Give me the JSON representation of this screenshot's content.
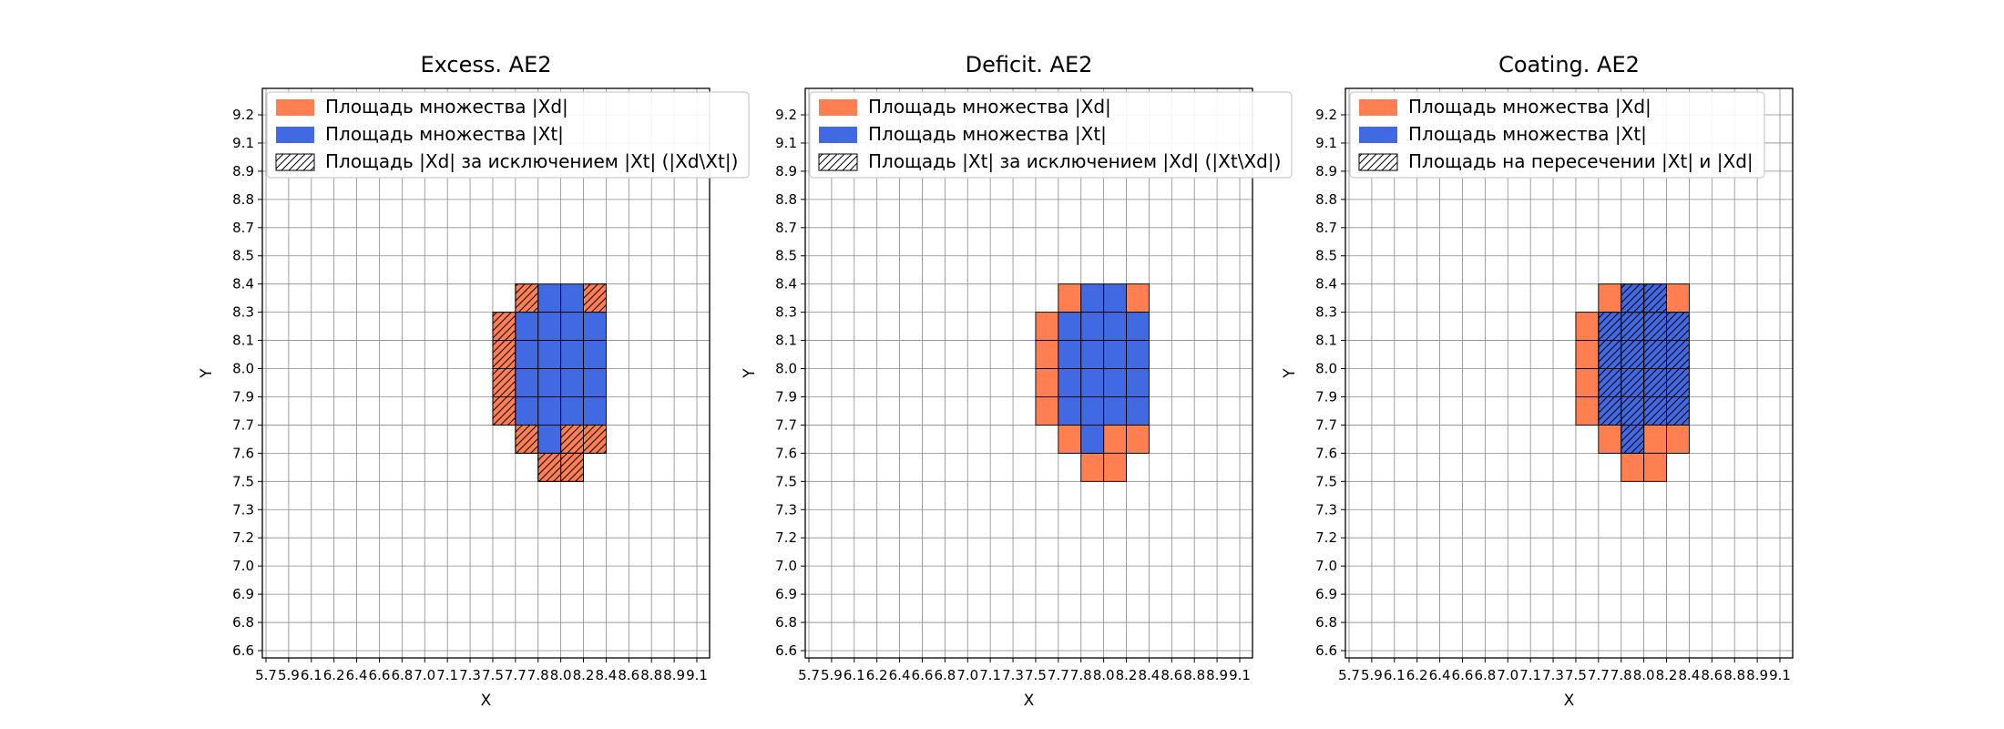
{
  "figure": {
    "background": "#ffffff",
    "text_color": "#000000"
  },
  "chart_data": {
    "type": "heatmap",
    "grid": true,
    "xlabel": "X",
    "ylabel": "Y",
    "x_ticks": [
      "5.7",
      "5.9",
      "6.1",
      "6.2",
      "6.4",
      "6.6",
      "6.8",
      "7.0",
      "7.1",
      "7.3",
      "7.5",
      "7.7",
      "7.8",
      "8.0",
      "8.2",
      "8.4",
      "8.6",
      "8.8",
      "8.9",
      "9.1"
    ],
    "y_ticks": [
      "9.2",
      "9.1",
      "8.9",
      "8.8",
      "8.7",
      "8.5",
      "8.4",
      "8.3",
      "8.1",
      "8.0",
      "7.9",
      "7.7",
      "7.6",
      "7.5",
      "7.3",
      "7.2",
      "7.0",
      "6.9",
      "6.8",
      "6.6"
    ],
    "colors": {
      "xd": "#ff7f50",
      "xt": "#4169e1",
      "grid": "#8a8a8a",
      "hatch": "#000000",
      "spine": "#000000",
      "legend_border": "#cccccc",
      "legend_bg": "#ffffff"
    },
    "cells": {
      "xd": [
        [
          11,
          6
        ],
        [
          14,
          6
        ],
        [
          10,
          7
        ],
        [
          10,
          8
        ],
        [
          10,
          9
        ],
        [
          10,
          10
        ],
        [
          11,
          11
        ],
        [
          13,
          11
        ],
        [
          14,
          11
        ],
        [
          12,
          12
        ],
        [
          13,
          12
        ]
      ],
      "xt": [
        [
          12,
          6
        ],
        [
          13,
          6
        ],
        [
          11,
          7
        ],
        [
          12,
          7
        ],
        [
          13,
          7
        ],
        [
          14,
          7
        ],
        [
          11,
          8
        ],
        [
          12,
          8
        ],
        [
          13,
          8
        ],
        [
          14,
          8
        ],
        [
          11,
          9
        ],
        [
          12,
          9
        ],
        [
          13,
          9
        ],
        [
          14,
          9
        ],
        [
          11,
          10
        ],
        [
          12,
          10
        ],
        [
          13,
          10
        ],
        [
          14,
          10
        ],
        [
          12,
          11
        ]
      ]
    },
    "subplots": [
      {
        "title": "Excess. AE2",
        "hatch_on": "xd",
        "legend": [
          {
            "swatch": "xd",
            "label": "Площадь множества |Xd|"
          },
          {
            "swatch": "xt",
            "label": "Площадь множества  |Xt|"
          },
          {
            "swatch": "hatch",
            "label": "Площадь |Xd| за исключением |Xt| (|Xd\\Xt|)"
          }
        ]
      },
      {
        "title": "Deficit. AE2",
        "hatch_on": "none",
        "legend": [
          {
            "swatch": "xd",
            "label": "Площадь множества |Xd|"
          },
          {
            "swatch": "xt",
            "label": "Площадь множества  |Xt|"
          },
          {
            "swatch": "hatch",
            "label": "Площадь |Xt| за исключением |Xd| (|Xt\\Xd|)"
          }
        ]
      },
      {
        "title": "Coating. AE2",
        "hatch_on": "xt",
        "legend": [
          {
            "swatch": "xd",
            "label": "Площадь множества |Xd|"
          },
          {
            "swatch": "xt",
            "label": "Площадь множества  |Xt|"
          },
          {
            "swatch": "hatch",
            "label": "Площадь на пересечении |Xt| и |Xd|"
          }
        ]
      }
    ]
  }
}
